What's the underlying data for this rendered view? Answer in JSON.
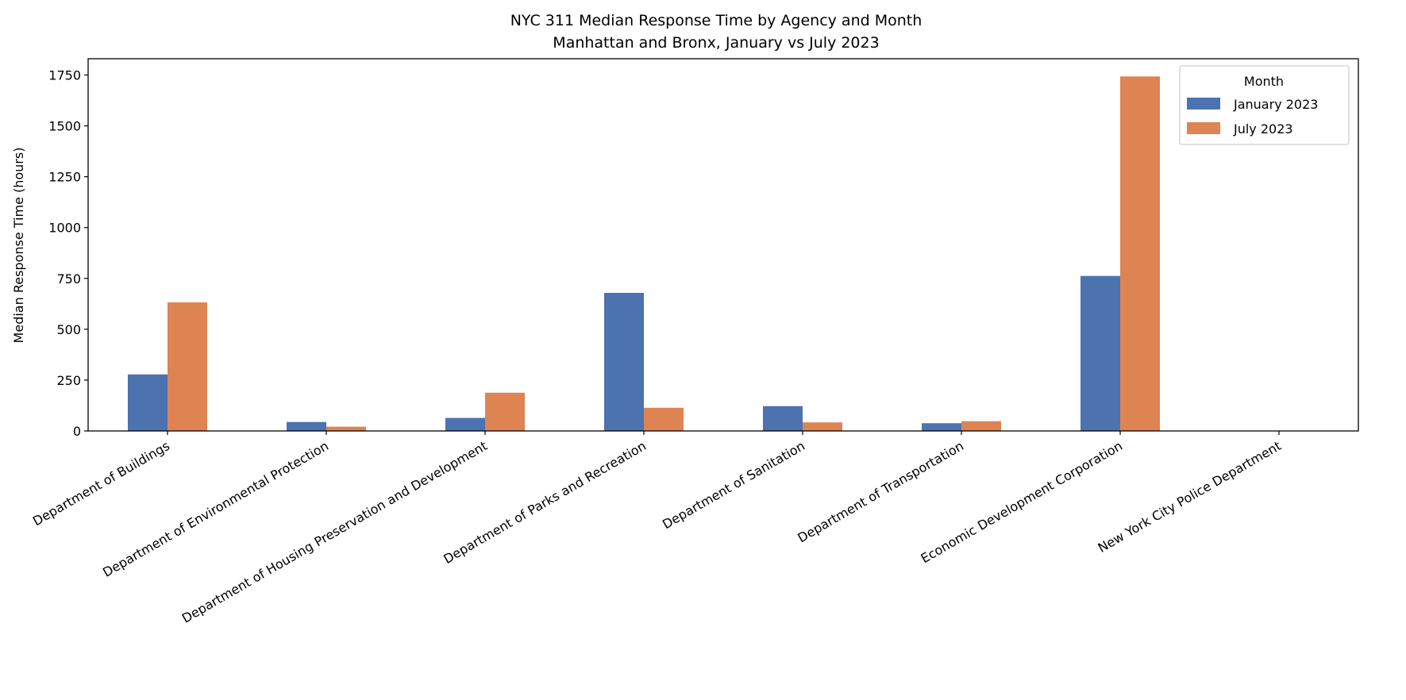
{
  "chart_data": {
    "type": "bar",
    "title": "NYC 311 Median Response Time by Agency and Month",
    "subtitle": "Manhattan and Bronx, January vs July 2023",
    "xlabel": "",
    "ylabel": "Median Response Time (hours)",
    "ylim": [
      0,
      1830
    ],
    "yticks": [
      0,
      250,
      500,
      750,
      1000,
      1250,
      1500,
      1750
    ],
    "grid": false,
    "legend": {
      "title": "Month",
      "placement": "top-right"
    },
    "categories": [
      "Department of Buildings",
      "Department of Environmental Protection",
      "Department of Housing Preservation and Development",
      "Department of Parks and Recreation",
      "Department of Sanitation",
      "Department of Transportation",
      "Economic Development Corporation",
      "New York City Police Department"
    ],
    "series": [
      {
        "name": "January 2023",
        "color": "#4c72b0",
        "values": [
          278,
          44,
          64,
          679,
          122,
          38,
          762,
          0
        ]
      },
      {
        "name": "July 2023",
        "color": "#dd8452",
        "values": [
          632,
          21,
          188,
          114,
          42,
          48,
          1743,
          0
        ]
      }
    ]
  }
}
